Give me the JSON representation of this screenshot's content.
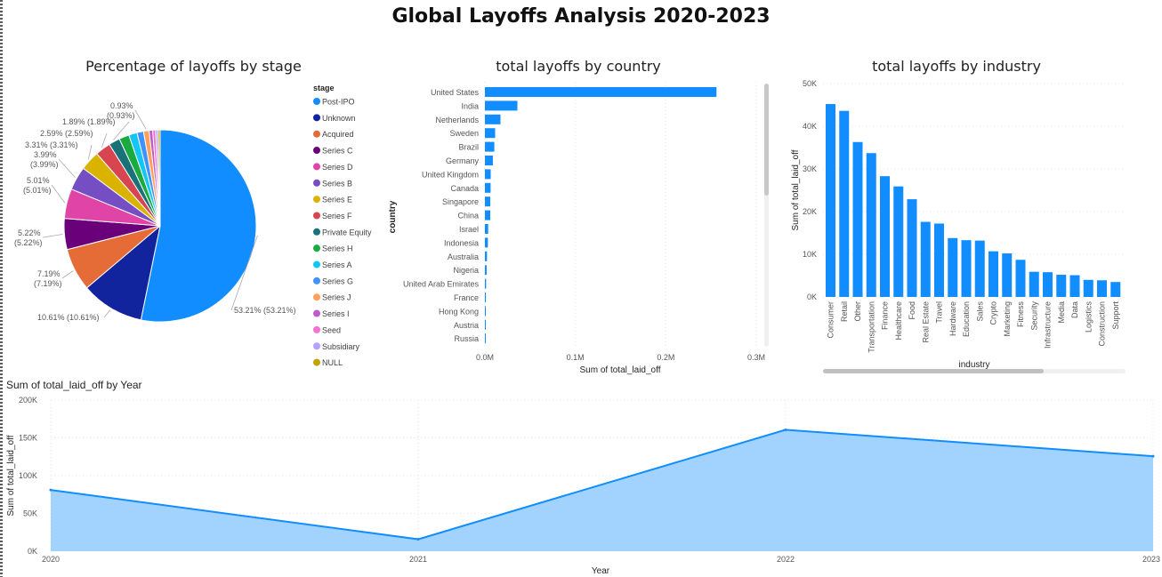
{
  "page": {
    "title": "Global Layoffs Analysis 2020-2023"
  },
  "chart_data": [
    {
      "id": "stage-pie",
      "type": "pie",
      "title": "Percentage of layoffs by stage",
      "legend_title": "stage",
      "legend_position": "right",
      "slices": [
        {
          "name": "Post-IPO",
          "percent": 53.21,
          "label": "53.21% (53.21%)",
          "color": "#118DFF"
        },
        {
          "name": "Unknown",
          "percent": 10.61,
          "label": "10.61% (10.61%)",
          "color": "#12239E"
        },
        {
          "name": "Acquired",
          "percent": 7.19,
          "label": "7.19% (7.19%)",
          "color": "#E66C37"
        },
        {
          "name": "Series C",
          "percent": 5.22,
          "label": "5.22% (5.22%)",
          "color": "#6B007B"
        },
        {
          "name": "Series D",
          "percent": 5.01,
          "label": "5.01% (5.01%)",
          "color": "#E044A7"
        },
        {
          "name": "Series B",
          "percent": 3.99,
          "label": "3.99% (3.99%)",
          "color": "#744EC2"
        },
        {
          "name": "Series E",
          "percent": 3.31,
          "label": "3.31% (3.31%)",
          "color": "#D9B300"
        },
        {
          "name": "Series F",
          "percent": 2.59,
          "label": "2.59% (2.59%)",
          "color": "#D64550"
        },
        {
          "name": "Private Equity",
          "percent": 1.89,
          "label": "1.89% (1.89%)",
          "color": "#197278"
        },
        {
          "name": "Series H",
          "percent": 1.7,
          "label": "",
          "color": "#1AAB40"
        },
        {
          "name": "Series A",
          "percent": 1.4,
          "label": "",
          "color": "#15C6F4"
        },
        {
          "name": "Series G",
          "percent": 1.1,
          "label": "",
          "color": "#4092FF"
        },
        {
          "name": "Series J",
          "percent": 0.93,
          "label": "0.93% (0.93%)",
          "color": "#FFA058"
        },
        {
          "name": "Series I",
          "percent": 0.6,
          "label": "",
          "color": "#BE5DC9"
        },
        {
          "name": "Seed",
          "percent": 0.5,
          "label": "",
          "color": "#F472D0"
        },
        {
          "name": "Subsidiary",
          "percent": 0.4,
          "label": "",
          "color": "#B5A1FF"
        },
        {
          "name": "NULL",
          "percent": 0.35,
          "label": "",
          "color": "#C4A200"
        }
      ]
    },
    {
      "id": "country-bar",
      "type": "bar",
      "orientation": "horizontal",
      "title": "total layoffs by country",
      "xlabel": "Sum of total_laid_off",
      "ylabel": "country",
      "xlim": [
        0,
        300000
      ],
      "xticks": [
        {
          "value": 0,
          "label": "0.0M"
        },
        {
          "value": 100000,
          "label": "0.1M"
        },
        {
          "value": 200000,
          "label": "0.2M"
        },
        {
          "value": 300000,
          "label": "0.3M"
        }
      ],
      "color": "#118DFF",
      "categories": [
        "United States",
        "India",
        "Netherlands",
        "Sweden",
        "Brazil",
        "Germany",
        "United Kingdom",
        "Canada",
        "Singapore",
        "China",
        "Israel",
        "Indonesia",
        "Australia",
        "Nigeria",
        "United Arab Emirates",
        "France",
        "Hong Kong",
        "Austria",
        "Russia"
      ],
      "values": [
        256000,
        35900,
        17200,
        11300,
        10400,
        8800,
        6400,
        6300,
        5900,
        5900,
        3600,
        3300,
        2300,
        1900,
        1300,
        1100,
        800,
        600,
        400
      ]
    },
    {
      "id": "industry-bar",
      "type": "bar",
      "orientation": "vertical",
      "title": "total layoffs by industry",
      "xlabel": "industry",
      "ylabel": "Sum of total_laid_off",
      "ylim": [
        0,
        50000
      ],
      "yticks": [
        {
          "value": 0,
          "label": "0K"
        },
        {
          "value": 10000,
          "label": "10K"
        },
        {
          "value": 20000,
          "label": "20K"
        },
        {
          "value": 30000,
          "label": "30K"
        },
        {
          "value": 40000,
          "label": "40K"
        },
        {
          "value": 50000,
          "label": "50K"
        }
      ],
      "color": "#118DFF",
      "categories": [
        "Consumer",
        "Retail",
        "Other",
        "Transportation",
        "Finance",
        "Healthcare",
        "Food",
        "Real Estate",
        "Travel",
        "Hardware",
        "Education",
        "Sales",
        "Crypto",
        "Marketing",
        "Fitness",
        "Security",
        "Infrastructure",
        "Media",
        "Data",
        "Logistics",
        "Construction",
        "Support"
      ],
      "values": [
        45200,
        43600,
        36300,
        33700,
        28300,
        25900,
        22900,
        17600,
        17200,
        13800,
        13300,
        13200,
        10700,
        10200,
        8700,
        5900,
        5800,
        5200,
        5100,
        4000,
        3900,
        3500
      ]
    },
    {
      "id": "year-area",
      "type": "area",
      "title": "Sum of total_laid_off by Year",
      "xlabel": "Year",
      "ylabel": "Sum of total_laid_off",
      "ylim": [
        0,
        200000
      ],
      "yticks": [
        {
          "value": 0,
          "label": "0K"
        },
        {
          "value": 50000,
          "label": "50K"
        },
        {
          "value": 100000,
          "label": "100K"
        },
        {
          "value": 150000,
          "label": "150K"
        },
        {
          "value": 200000,
          "label": "200K"
        }
      ],
      "color": "#118DFF",
      "fill": "#9DD1FF",
      "x": [
        "2020",
        "2021",
        "2022",
        "2023"
      ],
      "values": [
        80998,
        15823,
        160661,
        125677
      ]
    }
  ]
}
